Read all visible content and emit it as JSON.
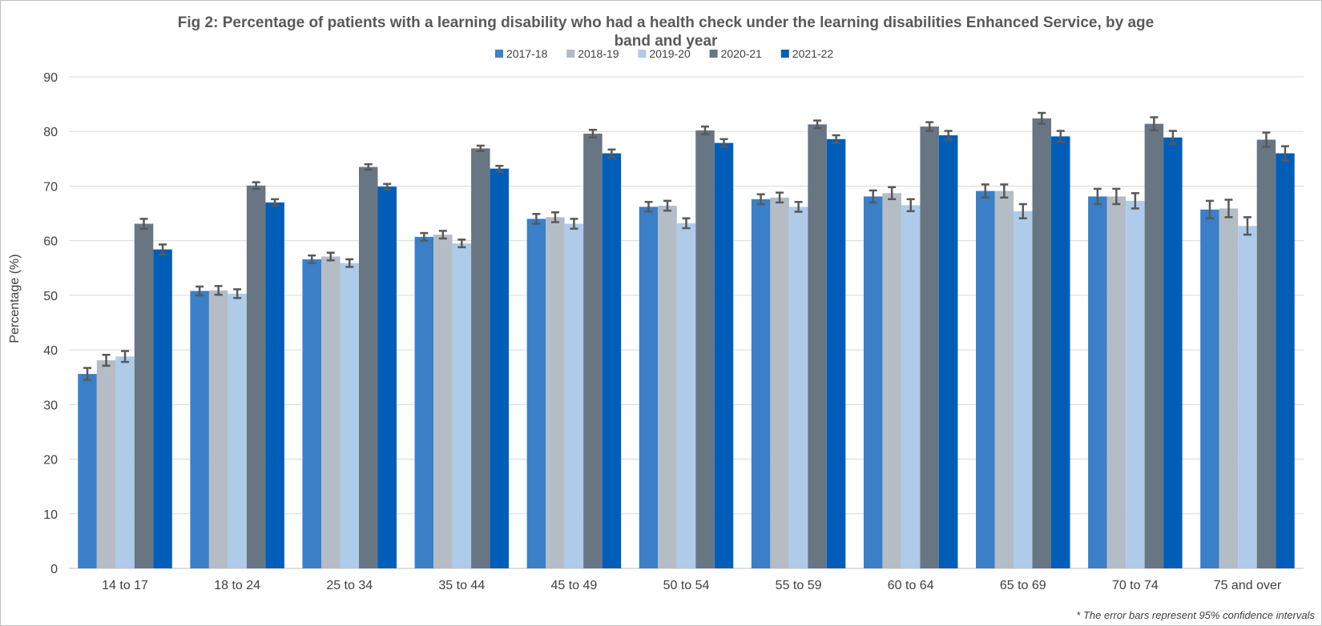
{
  "chart_data": {
    "type": "bar",
    "title_line1": "Fig 2: Percentage of patients with a learning disability who had a health check under the learning disabilities Enhanced Service, by age",
    "title_line2": "band and year",
    "xlabel": "",
    "ylabel": "Percentage (%)",
    "ylim": [
      0,
      90
    ],
    "yticks": [
      0,
      10,
      20,
      30,
      40,
      50,
      60,
      70,
      80,
      90
    ],
    "grid": true,
    "legend_position": "top-center",
    "categories": [
      "14 to 17",
      "18 to 24",
      "25 to 34",
      "35 to 44",
      "45 to 49",
      "50 to 54",
      "55 to 59",
      "60 to 64",
      "65 to 69",
      "70 to 74",
      "75 and over"
    ],
    "series": [
      {
        "name": "2017-18",
        "color": "#3a7fc8",
        "values": [
          35.6,
          50.8,
          56.6,
          60.7,
          64.0,
          66.2,
          67.6,
          68.1,
          69.1,
          68.1,
          65.7
        ],
        "error": [
          1.1,
          0.8,
          0.7,
          0.7,
          0.9,
          0.9,
          0.9,
          1.1,
          1.2,
          1.4,
          1.6
        ]
      },
      {
        "name": "2018-19",
        "color": "#b4bcc6",
        "values": [
          38.1,
          50.9,
          57.1,
          61.1,
          64.3,
          66.4,
          67.9,
          68.7,
          69.1,
          68.1,
          65.9
        ],
        "error": [
          1.0,
          0.8,
          0.7,
          0.7,
          0.9,
          0.9,
          0.9,
          1.1,
          1.2,
          1.4,
          1.6
        ]
      },
      {
        "name": "2019-20",
        "color": "#aecbea",
        "values": [
          38.8,
          50.3,
          55.9,
          59.5,
          63.1,
          63.2,
          66.2,
          66.5,
          65.4,
          67.3,
          62.7
        ],
        "error": [
          1.0,
          0.8,
          0.7,
          0.7,
          0.9,
          0.9,
          0.9,
          1.1,
          1.3,
          1.4,
          1.6
        ]
      },
      {
        "name": "2020-21",
        "color": "#687683",
        "values": [
          63.1,
          70.1,
          73.5,
          76.9,
          79.6,
          80.2,
          81.3,
          80.9,
          82.4,
          81.4,
          78.5
        ],
        "error": [
          0.9,
          0.6,
          0.5,
          0.5,
          0.7,
          0.7,
          0.7,
          0.8,
          1.0,
          1.2,
          1.3
        ]
      },
      {
        "name": "2021-22",
        "color": "#005eb8",
        "values": [
          58.4,
          67.0,
          69.9,
          73.2,
          76.0,
          77.9,
          78.6,
          79.3,
          79.1,
          78.9,
          76.0
        ],
        "error": [
          0.9,
          0.6,
          0.5,
          0.5,
          0.7,
          0.7,
          0.7,
          0.8,
          1.0,
          1.2,
          1.3
        ]
      }
    ],
    "footnote": "* The error bars represent 95% confidence intervals"
  }
}
